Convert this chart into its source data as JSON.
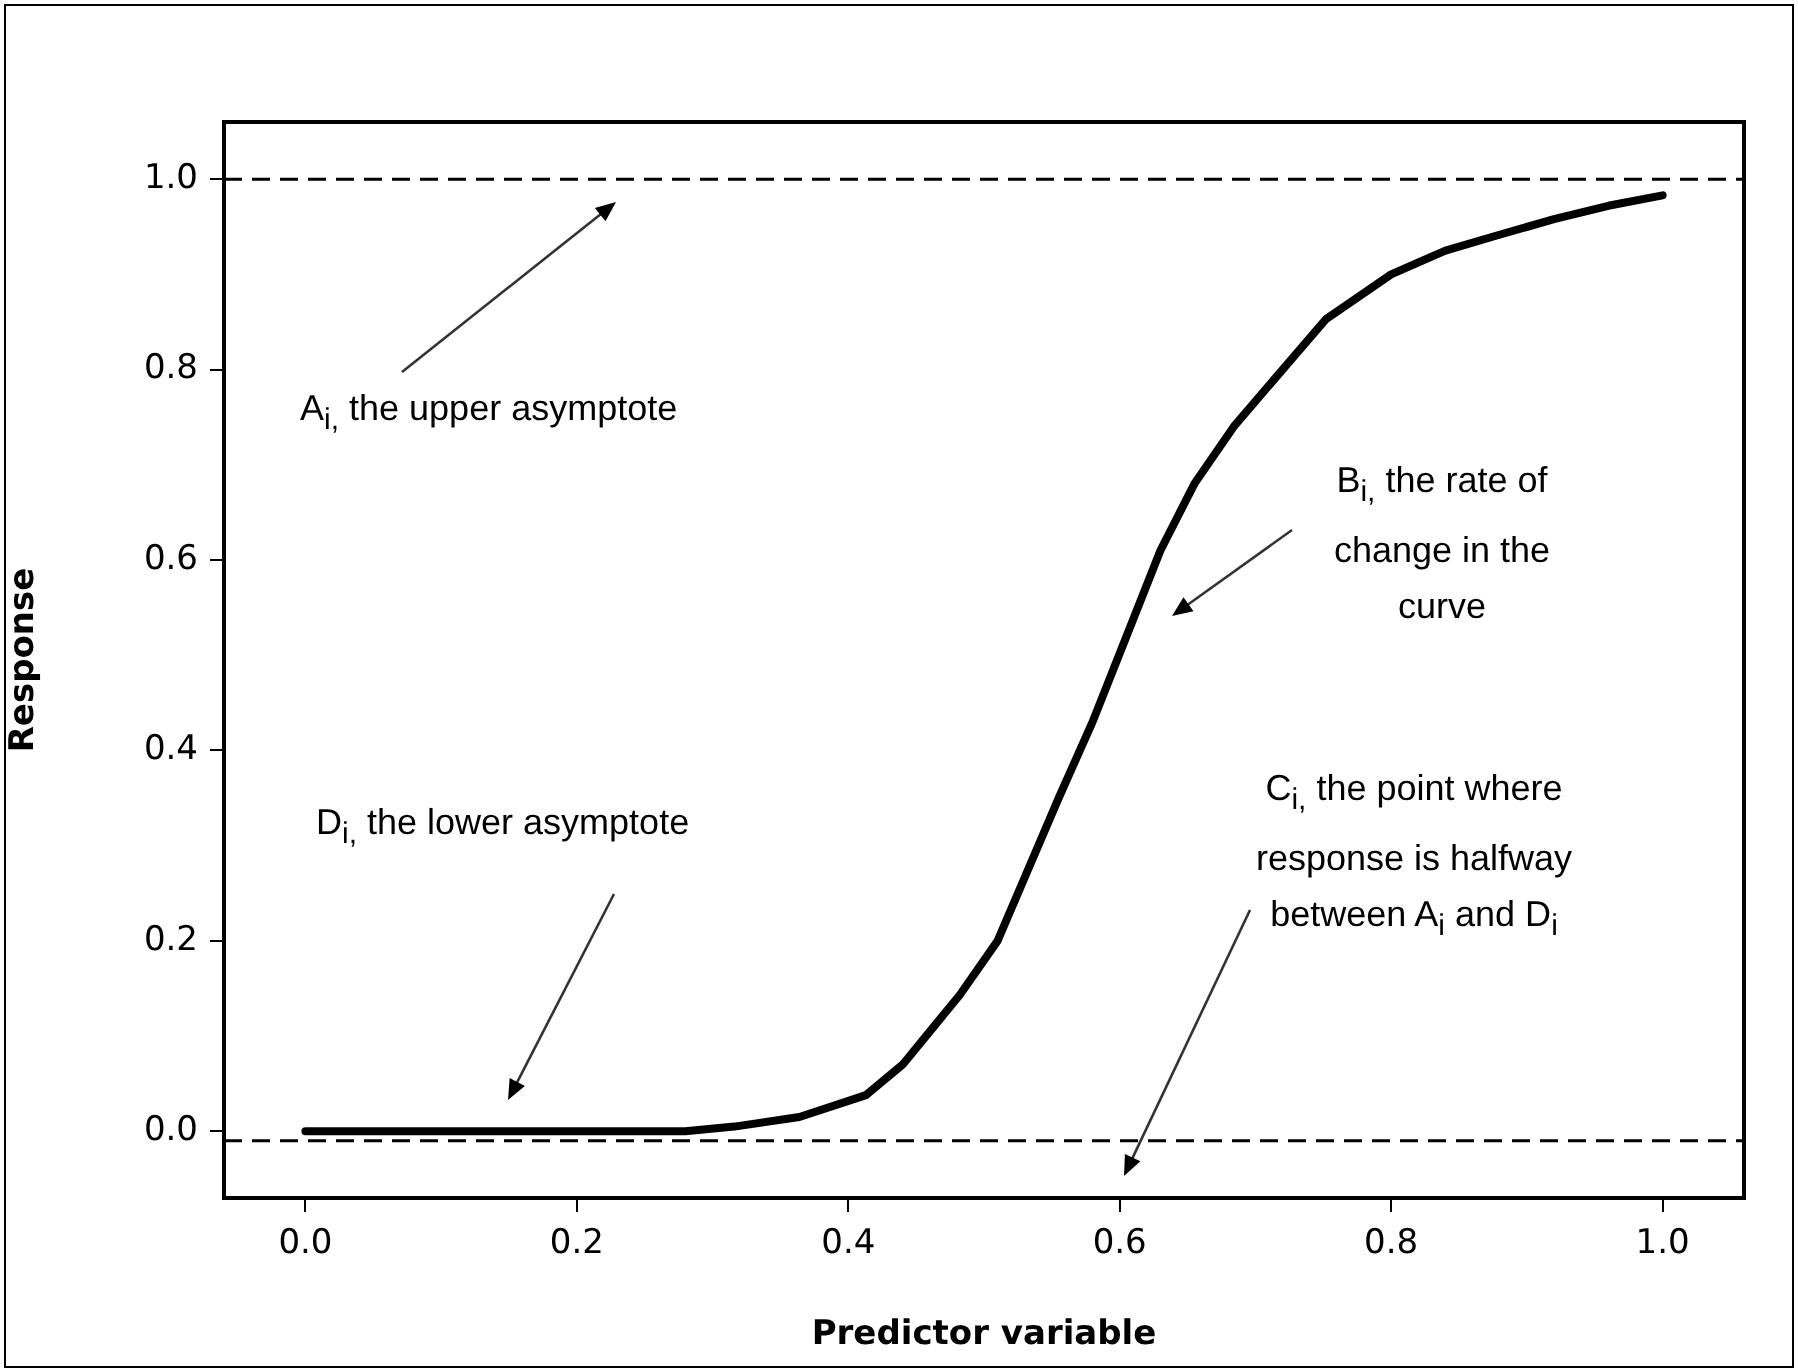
{
  "chart_data": {
    "type": "line",
    "xlabel": "Predictor variable",
    "ylabel": "Response",
    "xlim": [
      -0.06,
      1.06
    ],
    "xticks": [
      {
        "value": 0,
        "label": "0.0"
      },
      0.2,
      0.4,
      0.6,
      0.8,
      {
        "value": 1,
        "label": "1.0"
      }
    ],
    "ylim": [
      -0.07,
      1.06
    ],
    "yticks": [
      {
        "value": 0,
        "label": "0.0"
      },
      0.2,
      0.4,
      0.6,
      0.8,
      {
        "value": 1,
        "label": "1.0"
      }
    ],
    "grid": false,
    "legend": false,
    "marker": "none",
    "line_style": "solid",
    "series": [
      {
        "color": "#000000",
        "x": [
          0,
          0.1,
          0.2,
          0.28,
          0.316,
          0.364,
          0.413,
          0.44,
          0.463,
          0.482,
          0.51,
          0.531,
          0.555,
          0.58,
          0.605,
          0.63,
          0.655,
          0.684,
          0.72,
          0.752,
          0.8,
          0.84,
          0.876,
          0.92,
          0.96,
          1.0
        ],
        "values": [
          0,
          0,
          0,
          0,
          0.005,
          0.015,
          0.038,
          0.07,
          0.11,
          0.143,
          0.2,
          0.27,
          0.35,
          0.43,
          0.52,
          0.61,
          0.68,
          0.74,
          0.8,
          0.853,
          0.9,
          0.925,
          0.94,
          0.958,
          0.972,
          0.983
        ]
      }
    ],
    "ref_lines": [
      {
        "axis": "y",
        "value": 1,
        "color": "#000000",
        "line_style": "dashed"
      },
      {
        "axis": "y",
        "value": -0.01,
        "color": "#000000",
        "line_style": "dashed"
      }
    ],
    "annotations": [
      "A$_{i,}$ the upper asymptote",
      "B$_{i,}$ the rate of change in the curve",
      "C$_{i,}$ the point where response is halfway between A$_{i}$ and D$_{i}$",
      "D$_{i,}$ the lower asymptote"
    ]
  }
}
